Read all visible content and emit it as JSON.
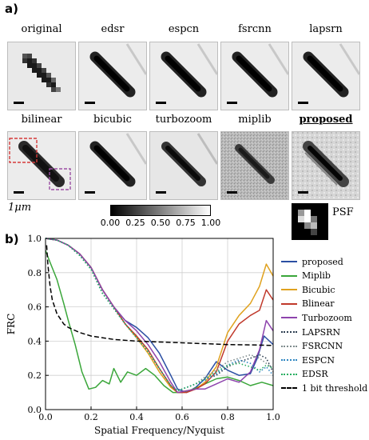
{
  "panel_a_label": "a)",
  "panel_b_label": "b)",
  "row1_labels": [
    "original",
    "edsr",
    "espcn",
    "fsrcnn",
    "lapsrn"
  ],
  "row2_labels": [
    "bilinear",
    "bicubic",
    "turbozoom",
    "miplib",
    "proposed"
  ],
  "scalebar_label": "1μm",
  "colorbar_ticks": [
    "0.00",
    "0.25",
    "0.50",
    "0.75",
    "1.00"
  ],
  "psf_label": "PSF",
  "chart_data": {
    "type": "line",
    "xlabel": "Spatial Frequency/Nyquist",
    "ylabel": "FRC",
    "xlim": [
      0.0,
      1.0
    ],
    "ylim": [
      0.0,
      1.0
    ],
    "xticks": [
      "0.0",
      "0.2",
      "0.4",
      "0.6",
      "0.8",
      "1.0"
    ],
    "yticks": [
      "0.0",
      "0.2",
      "0.4",
      "0.6",
      "0.8",
      "1.0"
    ],
    "grid": true,
    "legend_position": "right",
    "series": [
      {
        "name": "proposed",
        "color": "#2b4fa3",
        "dash": "solid",
        "x": [
          0,
          0.05,
          0.1,
          0.15,
          0.2,
          0.25,
          0.3,
          0.35,
          0.4,
          0.45,
          0.5,
          0.55,
          0.58,
          0.62,
          0.66,
          0.7,
          0.75,
          0.8,
          0.85,
          0.9,
          0.93,
          0.96,
          1.0
        ],
        "y": [
          1.0,
          0.99,
          0.96,
          0.91,
          0.83,
          0.7,
          0.6,
          0.52,
          0.48,
          0.42,
          0.33,
          0.2,
          0.12,
          0.1,
          0.13,
          0.18,
          0.28,
          0.23,
          0.2,
          0.21,
          0.3,
          0.43,
          0.38
        ]
      },
      {
        "name": "Miplib",
        "color": "#3aa63a",
        "dash": "solid",
        "x": [
          0,
          0.02,
          0.05,
          0.08,
          0.1,
          0.13,
          0.16,
          0.19,
          0.22,
          0.25,
          0.28,
          0.3,
          0.33,
          0.36,
          0.4,
          0.44,
          0.48,
          0.52,
          0.56,
          0.6,
          0.65,
          0.7,
          0.75,
          0.8,
          0.85,
          0.9,
          0.95,
          1.0
        ],
        "y": [
          0.93,
          0.86,
          0.76,
          0.62,
          0.52,
          0.38,
          0.22,
          0.12,
          0.13,
          0.17,
          0.15,
          0.24,
          0.16,
          0.22,
          0.2,
          0.24,
          0.2,
          0.14,
          0.1,
          0.1,
          0.12,
          0.15,
          0.18,
          0.19,
          0.17,
          0.14,
          0.16,
          0.14
        ]
      },
      {
        "name": "Bicubic",
        "color": "#e0a21f",
        "dash": "solid",
        "x": [
          0,
          0.05,
          0.1,
          0.15,
          0.2,
          0.25,
          0.3,
          0.35,
          0.4,
          0.45,
          0.5,
          0.55,
          0.58,
          0.62,
          0.66,
          0.7,
          0.75,
          0.8,
          0.85,
          0.9,
          0.94,
          0.97,
          1.0
        ],
        "y": [
          1.0,
          0.99,
          0.96,
          0.91,
          0.83,
          0.7,
          0.6,
          0.5,
          0.42,
          0.33,
          0.22,
          0.13,
          0.1,
          0.11,
          0.12,
          0.16,
          0.25,
          0.45,
          0.55,
          0.62,
          0.72,
          0.85,
          0.78
        ]
      },
      {
        "name": "Blinear",
        "color": "#c0392b",
        "dash": "solid",
        "x": [
          0,
          0.05,
          0.1,
          0.15,
          0.2,
          0.25,
          0.3,
          0.35,
          0.4,
          0.45,
          0.5,
          0.55,
          0.58,
          0.62,
          0.66,
          0.7,
          0.75,
          0.8,
          0.85,
          0.9,
          0.94,
          0.97,
          1.0
        ],
        "y": [
          1.0,
          0.99,
          0.96,
          0.91,
          0.83,
          0.7,
          0.6,
          0.5,
          0.43,
          0.35,
          0.24,
          0.14,
          0.1,
          0.1,
          0.12,
          0.15,
          0.22,
          0.4,
          0.5,
          0.55,
          0.58,
          0.7,
          0.64
        ]
      },
      {
        "name": "Turbozoom",
        "color": "#8e44ad",
        "dash": "solid",
        "x": [
          0,
          0.05,
          0.1,
          0.15,
          0.2,
          0.25,
          0.3,
          0.35,
          0.4,
          0.45,
          0.5,
          0.55,
          0.58,
          0.62,
          0.66,
          0.7,
          0.75,
          0.8,
          0.85,
          0.9,
          0.94,
          0.97,
          1.0
        ],
        "y": [
          1.0,
          0.99,
          0.96,
          0.91,
          0.83,
          0.7,
          0.6,
          0.52,
          0.46,
          0.38,
          0.28,
          0.16,
          0.1,
          0.11,
          0.12,
          0.12,
          0.15,
          0.18,
          0.16,
          0.22,
          0.35,
          0.52,
          0.46
        ]
      },
      {
        "name": "LAPSRN",
        "color": "#2c3e50",
        "dash": "dotted",
        "x": [
          0,
          0.05,
          0.1,
          0.15,
          0.2,
          0.25,
          0.3,
          0.35,
          0.4,
          0.45,
          0.5,
          0.55,
          0.58,
          0.62,
          0.66,
          0.7,
          0.75,
          0.8,
          0.85,
          0.9,
          0.94,
          0.97,
          1.0
        ],
        "y": [
          1.0,
          0.99,
          0.96,
          0.9,
          0.82,
          0.68,
          0.59,
          0.5,
          0.42,
          0.34,
          0.24,
          0.14,
          0.11,
          0.13,
          0.15,
          0.18,
          0.2,
          0.25,
          0.28,
          0.3,
          0.32,
          0.3,
          0.22
        ]
      },
      {
        "name": "FSRCNN",
        "color": "#7f8c8d",
        "dash": "dotted",
        "x": [
          0,
          0.05,
          0.1,
          0.15,
          0.2,
          0.25,
          0.3,
          0.35,
          0.4,
          0.45,
          0.5,
          0.55,
          0.58,
          0.62,
          0.66,
          0.7,
          0.75,
          0.8,
          0.85,
          0.9,
          0.94,
          0.97,
          1.0
        ],
        "y": [
          1.0,
          0.99,
          0.96,
          0.9,
          0.82,
          0.68,
          0.59,
          0.5,
          0.42,
          0.34,
          0.24,
          0.14,
          0.11,
          0.13,
          0.15,
          0.19,
          0.23,
          0.28,
          0.3,
          0.32,
          0.3,
          0.27,
          0.24
        ]
      },
      {
        "name": "ESPCN",
        "color": "#2e86c1",
        "dash": "dotted",
        "x": [
          0,
          0.05,
          0.1,
          0.15,
          0.2,
          0.25,
          0.3,
          0.35,
          0.4,
          0.45,
          0.5,
          0.55,
          0.58,
          0.62,
          0.66,
          0.7,
          0.75,
          0.8,
          0.85,
          0.9,
          0.94,
          0.97,
          1.0
        ],
        "y": [
          1.0,
          0.99,
          0.96,
          0.9,
          0.82,
          0.68,
          0.59,
          0.5,
          0.42,
          0.34,
          0.24,
          0.14,
          0.11,
          0.13,
          0.15,
          0.17,
          0.21,
          0.26,
          0.29,
          0.27,
          0.22,
          0.25,
          0.2
        ]
      },
      {
        "name": "EDSR",
        "color": "#27ae60",
        "dash": "dotted",
        "x": [
          0,
          0.05,
          0.1,
          0.15,
          0.2,
          0.25,
          0.3,
          0.35,
          0.4,
          0.45,
          0.5,
          0.55,
          0.58,
          0.62,
          0.66,
          0.7,
          0.75,
          0.8,
          0.85,
          0.9,
          0.94,
          0.97,
          1.0
        ],
        "y": [
          1.0,
          0.99,
          0.96,
          0.9,
          0.82,
          0.68,
          0.59,
          0.5,
          0.42,
          0.34,
          0.24,
          0.14,
          0.11,
          0.13,
          0.15,
          0.18,
          0.22,
          0.26,
          0.27,
          0.25,
          0.23,
          0.26,
          0.24
        ]
      },
      {
        "name": "1 bit threshold",
        "color": "#000000",
        "dash": "dashed",
        "x": [
          0.005,
          0.01,
          0.02,
          0.03,
          0.05,
          0.08,
          0.1,
          0.15,
          0.2,
          0.3,
          0.4,
          0.5,
          0.6,
          0.7,
          0.8,
          0.9,
          1.0
        ],
        "y": [
          0.96,
          0.85,
          0.72,
          0.64,
          0.56,
          0.5,
          0.48,
          0.45,
          0.43,
          0.41,
          0.4,
          0.395,
          0.39,
          0.385,
          0.38,
          0.378,
          0.375
        ]
      }
    ]
  }
}
